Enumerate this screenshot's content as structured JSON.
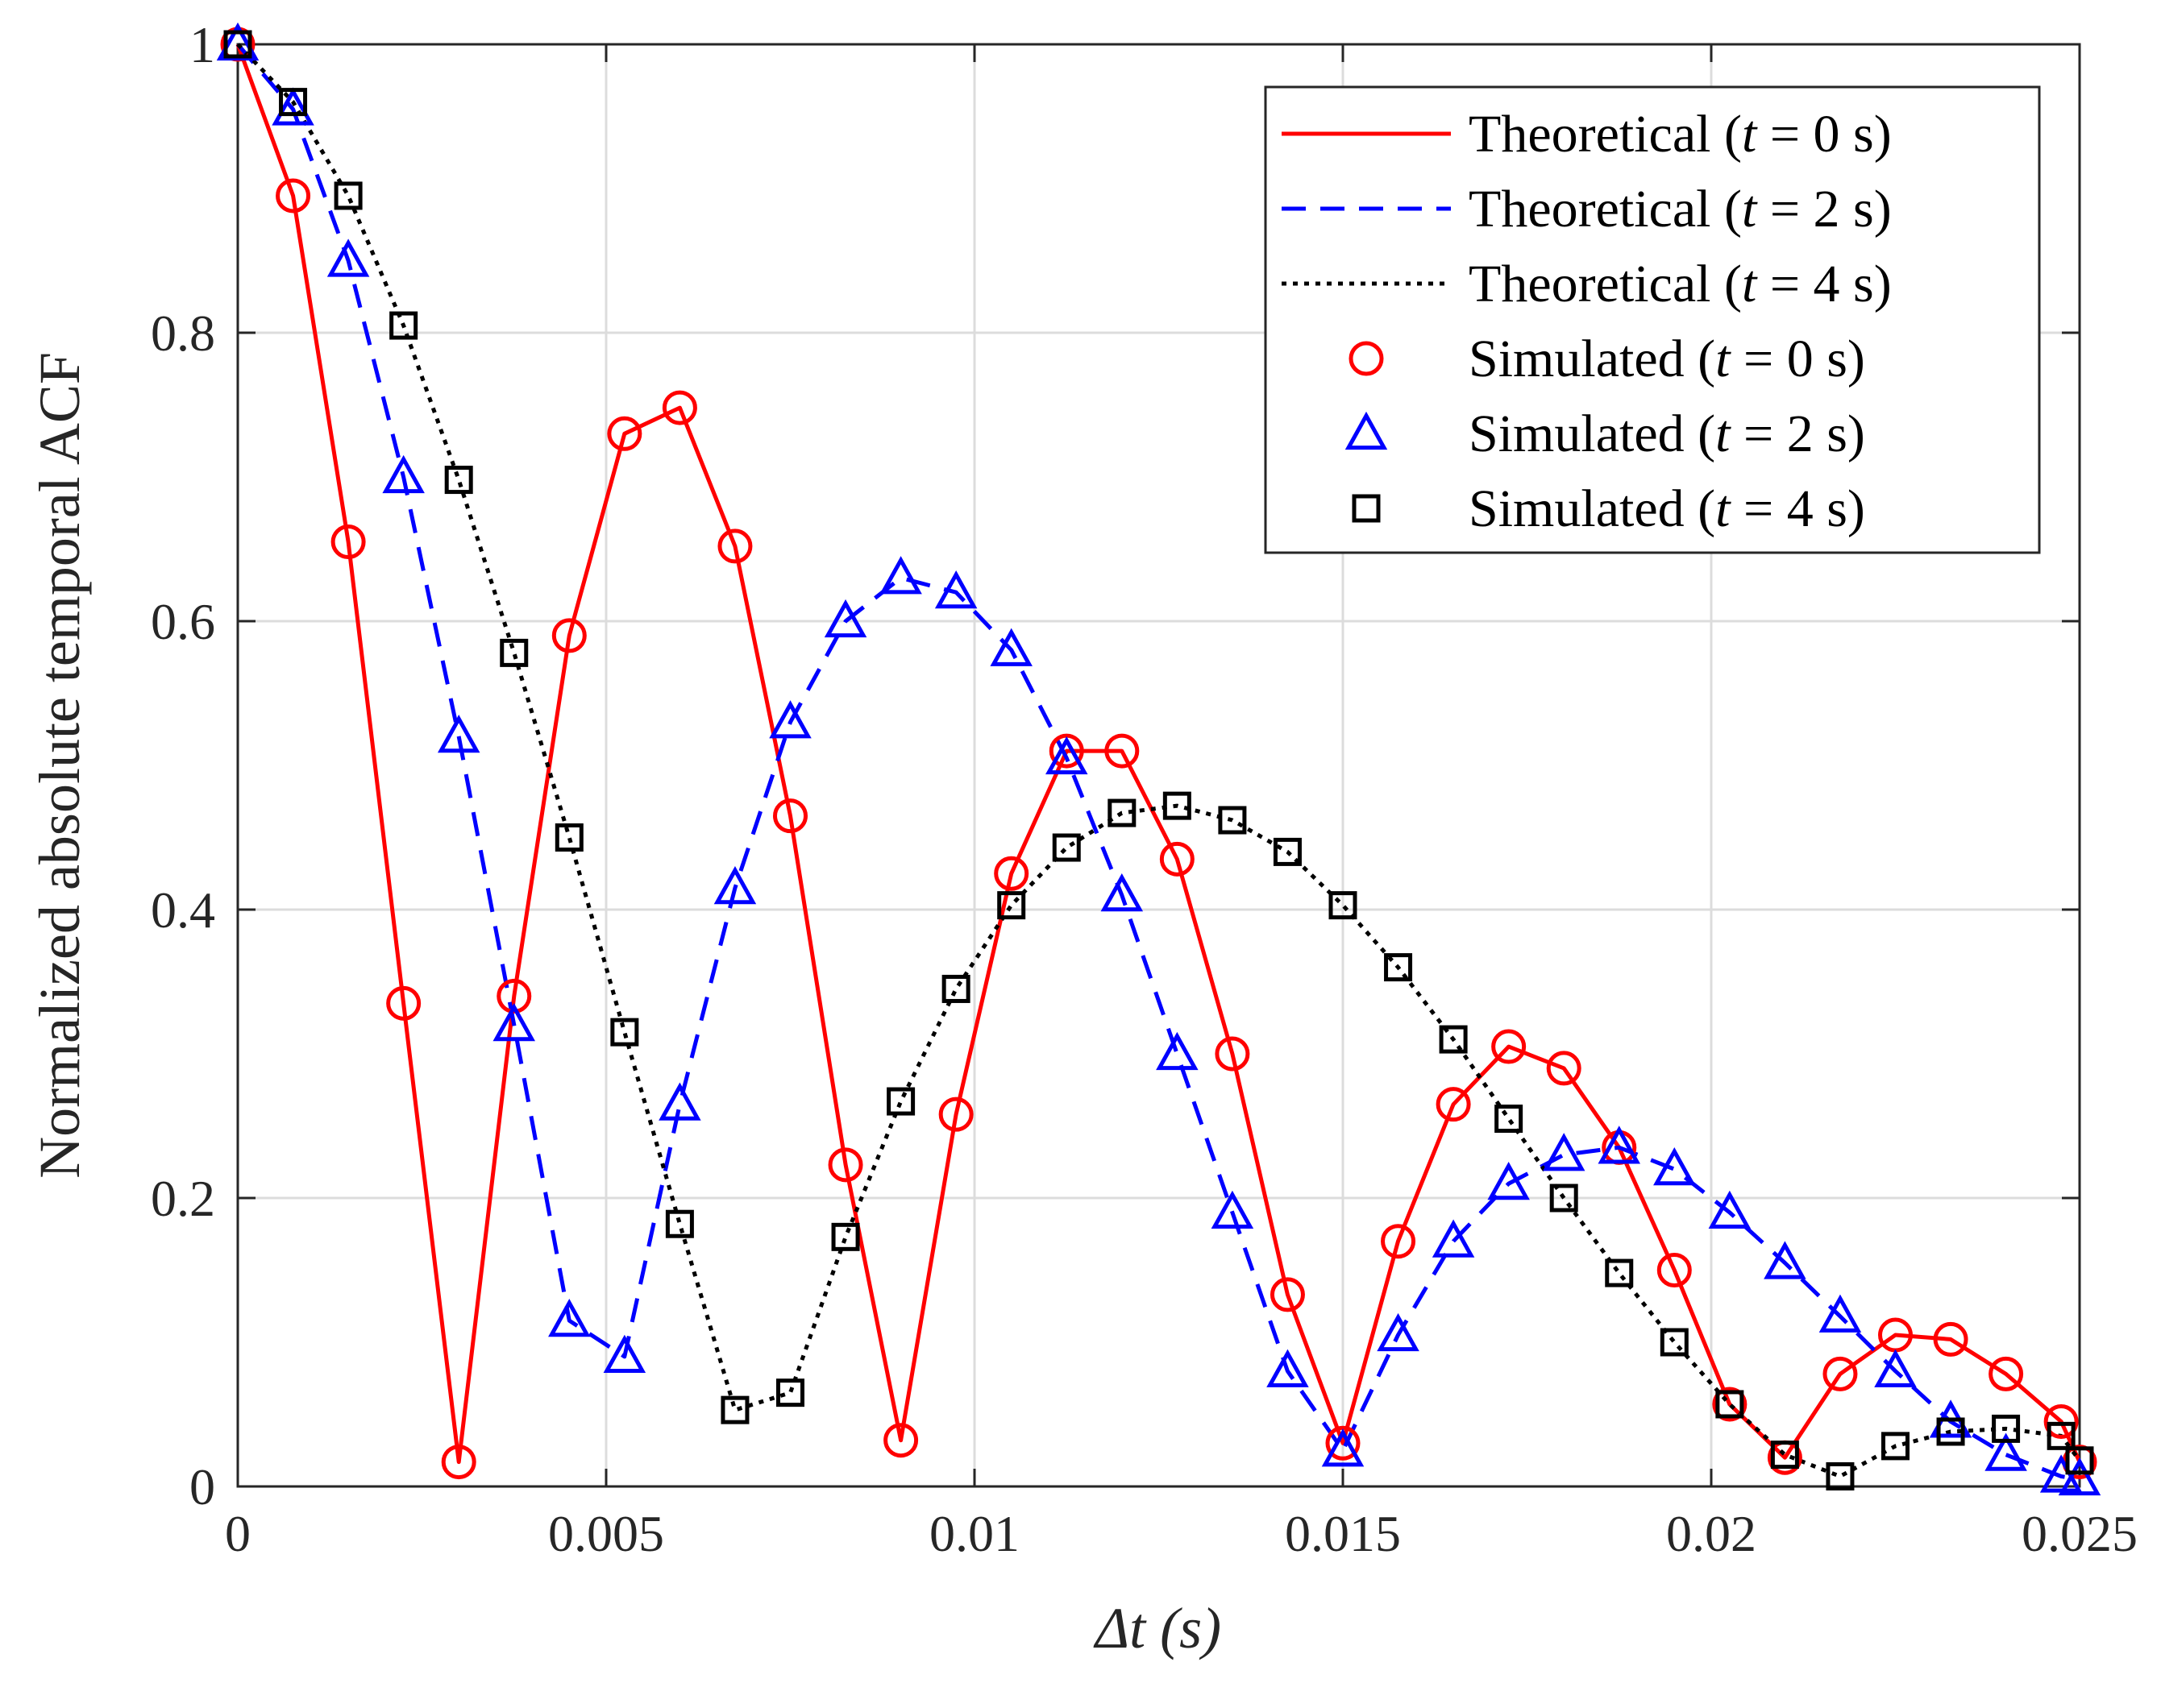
{
  "chart_data": {
    "type": "line",
    "title": "",
    "xlabel": "Δt (s)",
    "ylabel": "Normalized absolute temporal ACF",
    "xlim": [
      0,
      0.025
    ],
    "ylim": [
      0,
      1
    ],
    "xticks": [
      0,
      0.005,
      0.01,
      0.015,
      0.02,
      0.025
    ],
    "xtick_labels": [
      "0",
      "0.005",
      "0.01",
      "0.015",
      "0.02",
      "0.025"
    ],
    "yticks": [
      0,
      0.2,
      0.4,
      0.6,
      0.8,
      1
    ],
    "ytick_labels": [
      "0",
      "0.2",
      "0.4",
      "0.6",
      "0.8",
      "1"
    ],
    "grid": true,
    "legend_position": "top-right",
    "x": [
      0,
      0.00075,
      0.0015,
      0.00225,
      0.003,
      0.00375,
      0.0045,
      0.00525,
      0.006,
      0.00675,
      0.0075,
      0.00825,
      0.009,
      0.00975,
      0.0105,
      0.01125,
      0.012,
      0.01275,
      0.0135,
      0.01425,
      0.015,
      0.01575,
      0.0165,
      0.01725,
      0.018,
      0.01875,
      0.0195,
      0.02025,
      0.021,
      0.02175,
      0.0225,
      0.02325,
      0.024,
      0.02475,
      0.025
    ],
    "series": [
      {
        "name": "Theoretical (t = 0 s)",
        "kind": "line",
        "style": "solid",
        "color": "#ff0000",
        "values": [
          1.0,
          0.895,
          0.655,
          0.335,
          0.017,
          0.34,
          0.59,
          0.73,
          0.748,
          0.652,
          0.465,
          0.223,
          0.032,
          0.258,
          0.425,
          0.51,
          0.51,
          0.435,
          0.3,
          0.133,
          0.03,
          0.17,
          0.265,
          0.305,
          0.29,
          0.235,
          0.15,
          0.057,
          0.02,
          0.078,
          0.105,
          0.102,
          0.078,
          0.045,
          0.017
        ]
      },
      {
        "name": "Theoretical (t = 2 s)",
        "kind": "line",
        "style": "dashed",
        "color": "#0000ff",
        "values": [
          1.0,
          0.955,
          0.85,
          0.7,
          0.52,
          0.32,
          0.115,
          0.09,
          0.265,
          0.415,
          0.53,
          0.6,
          0.63,
          0.62,
          0.58,
          0.505,
          0.41,
          0.3,
          0.19,
          0.08,
          0.025,
          0.105,
          0.17,
          0.21,
          0.23,
          0.235,
          0.22,
          0.19,
          0.155,
          0.118,
          0.08,
          0.045,
          0.022,
          0.007,
          0.005
        ]
      },
      {
        "name": "Theoretical (t = 4 s)",
        "kind": "line",
        "style": "dotted",
        "color": "#000000",
        "values": [
          1.0,
          0.96,
          0.895,
          0.805,
          0.698,
          0.578,
          0.45,
          0.315,
          0.182,
          0.053,
          0.065,
          0.173,
          0.267,
          0.345,
          0.403,
          0.443,
          0.467,
          0.472,
          0.462,
          0.44,
          0.403,
          0.36,
          0.31,
          0.255,
          0.2,
          0.148,
          0.1,
          0.057,
          0.022,
          0.007,
          0.028,
          0.038,
          0.04,
          0.035,
          0.018
        ]
      },
      {
        "name": "Simulated (t = 0 s)",
        "kind": "markers",
        "marker": "circle",
        "color": "#ff0000",
        "values": [
          1.0,
          0.895,
          0.655,
          0.335,
          0.017,
          0.34,
          0.59,
          0.73,
          0.748,
          0.652,
          0.465,
          0.223,
          0.032,
          0.258,
          0.425,
          0.51,
          0.51,
          0.435,
          0.3,
          0.133,
          0.03,
          0.17,
          0.265,
          0.305,
          0.29,
          0.235,
          0.15,
          0.057,
          0.02,
          0.078,
          0.105,
          0.102,
          0.078,
          0.045,
          0.017
        ]
      },
      {
        "name": "Simulated (t = 2 s)",
        "kind": "markers",
        "marker": "triangle",
        "color": "#0000ff",
        "values": [
          1.0,
          0.955,
          0.85,
          0.7,
          0.52,
          0.32,
          0.115,
          0.09,
          0.265,
          0.415,
          0.53,
          0.6,
          0.63,
          0.62,
          0.58,
          0.505,
          0.41,
          0.3,
          0.19,
          0.08,
          0.025,
          0.105,
          0.17,
          0.21,
          0.23,
          0.235,
          0.22,
          0.19,
          0.155,
          0.118,
          0.08,
          0.045,
          0.022,
          0.007,
          0.005
        ]
      },
      {
        "name": "Simulated (t = 4 s)",
        "kind": "markers",
        "marker": "square",
        "color": "#000000",
        "values": [
          1.0,
          0.96,
          0.895,
          0.805,
          0.698,
          0.578,
          0.45,
          0.315,
          0.182,
          0.053,
          0.065,
          0.173,
          0.267,
          0.345,
          0.403,
          0.443,
          0.467,
          0.472,
          0.462,
          0.44,
          0.403,
          0.36,
          0.31,
          0.255,
          0.2,
          0.148,
          0.1,
          0.057,
          0.022,
          0.007,
          0.028,
          0.038,
          0.04,
          0.035,
          0.018
        ]
      }
    ],
    "legend": [
      {
        "prefix": "Theoretical",
        "var": "t",
        "value": "0",
        "unit": "s"
      },
      {
        "prefix": "Theoretical",
        "var": "t",
        "value": "2",
        "unit": "s"
      },
      {
        "prefix": "Theoretical",
        "var": "t",
        "value": "4",
        "unit": "s"
      },
      {
        "prefix": "Simulated",
        "var": "t",
        "value": "0",
        "unit": "s"
      },
      {
        "prefix": "Simulated",
        "var": "t",
        "value": "2",
        "unit": "s"
      },
      {
        "prefix": "Simulated",
        "var": "t",
        "value": "4",
        "unit": "s"
      }
    ]
  }
}
